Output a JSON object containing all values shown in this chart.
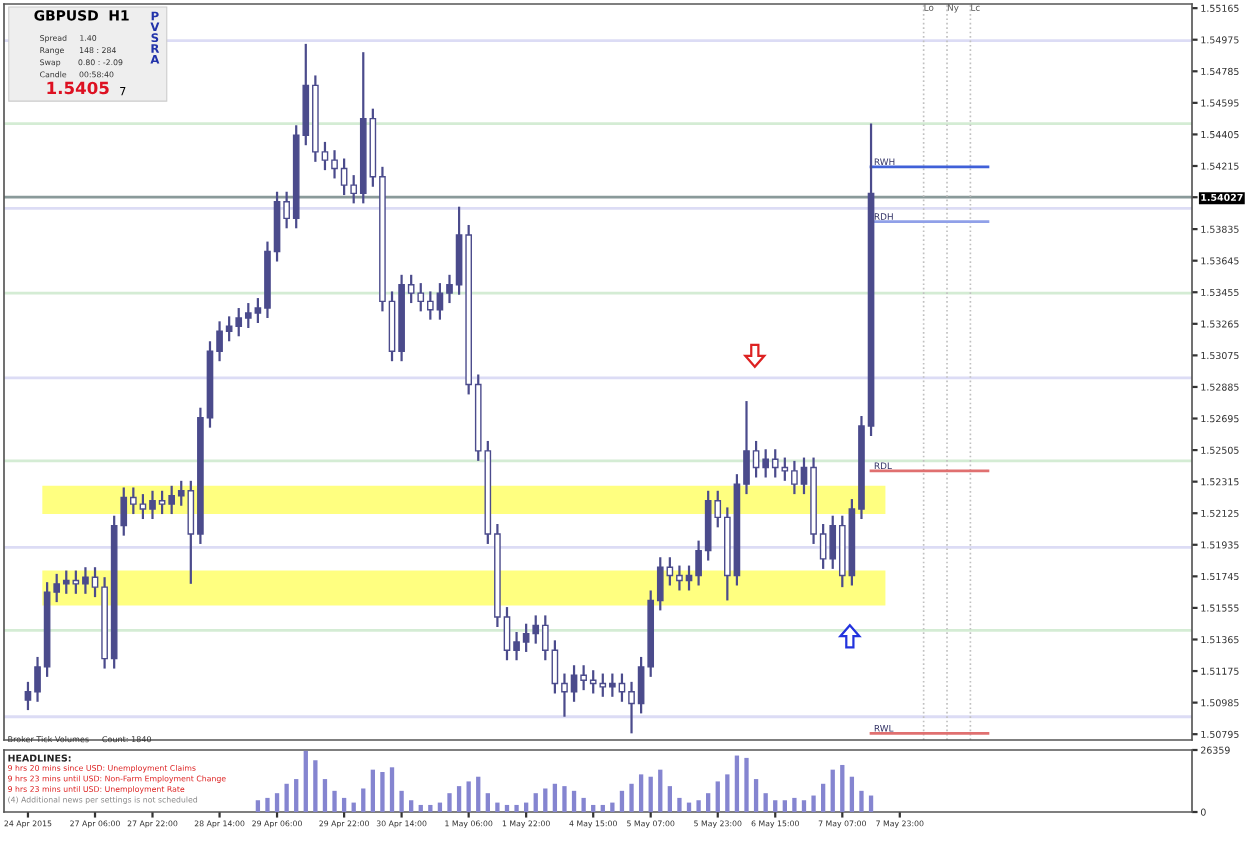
{
  "chart_data": [
    {
      "type": "candlestick",
      "color": "#4b4b8c",
      "tick_labels": "y",
      "legend": false,
      "grid": false,
      "categories": [
        null,
        null,
        null,
        null,
        null,
        null,
        null,
        null,
        null,
        null,
        null,
        null,
        null,
        null,
        null,
        null,
        null,
        null,
        null,
        null,
        null,
        null,
        null,
        null,
        null,
        null,
        null,
        null,
        null,
        null,
        null,
        null,
        null,
        null,
        null,
        null,
        null,
        null,
        null,
        null,
        null,
        null,
        null,
        null,
        null,
        null,
        null,
        null,
        null,
        null,
        null,
        null,
        null,
        null,
        null,
        null,
        null,
        null,
        null,
        null,
        null,
        null,
        null,
        null,
        null,
        null,
        null,
        null,
        null,
        null,
        null,
        null,
        null,
        null,
        null,
        null,
        null,
        null,
        null,
        null,
        null,
        null,
        null,
        null,
        null,
        null,
        null,
        null,
        null,
        null,
        null,
        null,
        null,
        null,
        null,
        null,
        null,
        null,
        null,
        null,
        null,
        null,
        null,
        null,
        null,
        null,
        null,
        null,
        null,
        null,
        null,
        null,
        null,
        null,
        null,
        null,
        null,
        null,
        null,
        null,
        null,
        null
      ],
      "ohlc": [
        [
          1.51,
          1.5111,
          1.5094,
          1.5105
        ],
        [
          1.5105,
          1.5126,
          1.5099,
          1.512
        ],
        [
          1.512,
          1.5171,
          1.5114,
          1.5165
        ],
        [
          1.5165,
          1.5176,
          1.5159,
          1.517
        ],
        [
          1.517,
          1.5178,
          1.5164,
          1.5172
        ],
        [
          1.5172,
          1.5178,
          1.5164,
          1.517
        ],
        [
          1.517,
          1.518,
          1.5164,
          1.5174
        ],
        [
          1.5174,
          1.518,
          1.5162,
          1.5168
        ],
        [
          1.5168,
          1.5174,
          1.5119,
          1.5125
        ],
        [
          1.5125,
          1.5211,
          1.5119,
          1.5205
        ],
        [
          1.5205,
          1.5228,
          1.5199,
          1.5222
        ],
        [
          1.5222,
          1.5228,
          1.5212,
          1.5218
        ],
        [
          1.5218,
          1.5224,
          1.5209,
          1.5215
        ],
        [
          1.5215,
          1.5226,
          1.5209,
          1.522
        ],
        [
          1.522,
          1.5226,
          1.5212,
          1.5218
        ],
        [
          1.5218,
          1.5229,
          1.5212,
          1.5223
        ],
        [
          1.5223,
          1.5232,
          1.5217,
          1.5226
        ],
        [
          1.5226,
          1.5232,
          1.517,
          1.52
        ],
        [
          1.52,
          1.5276,
          1.5194,
          1.527
        ],
        [
          1.527,
          1.5316,
          1.5264,
          1.531
        ],
        [
          1.531,
          1.5328,
          1.5304,
          1.5322
        ],
        [
          1.5322,
          1.5331,
          1.5316,
          1.5325
        ],
        [
          1.5325,
          1.5336,
          1.5319,
          1.533
        ],
        [
          1.533,
          1.5339,
          1.5324,
          1.5333
        ],
        [
          1.5333,
          1.5342,
          1.5327,
          1.5336
        ],
        [
          1.5336,
          1.5376,
          1.533,
          1.537
        ],
        [
          1.537,
          1.5406,
          1.5364,
          1.54
        ],
        [
          1.54,
          1.5406,
          1.5384,
          1.539
        ],
        [
          1.539,
          1.5446,
          1.5384,
          1.544
        ],
        [
          1.544,
          1.5495,
          1.5434,
          1.547
        ],
        [
          1.547,
          1.5476,
          1.5424,
          1.543
        ],
        [
          1.543,
          1.5436,
          1.5419,
          1.5425
        ],
        [
          1.5425,
          1.5431,
          1.5414,
          1.542
        ],
        [
          1.542,
          1.5426,
          1.5404,
          1.541
        ],
        [
          1.541,
          1.5416,
          1.5399,
          1.5405
        ],
        [
          1.5405,
          1.549,
          1.5399,
          1.545
        ],
        [
          1.545,
          1.5456,
          1.5409,
          1.5415
        ],
        [
          1.5415,
          1.5421,
          1.5334,
          1.534
        ],
        [
          1.534,
          1.5346,
          1.5304,
          1.531
        ],
        [
          1.531,
          1.5356,
          1.5304,
          1.535
        ],
        [
          1.535,
          1.5356,
          1.5339,
          1.5345
        ],
        [
          1.5345,
          1.5351,
          1.5334,
          1.534
        ],
        [
          1.534,
          1.5346,
          1.5329,
          1.5335
        ],
        [
          1.5335,
          1.5351,
          1.5329,
          1.5345
        ],
        [
          1.5345,
          1.5356,
          1.5339,
          1.535
        ],
        [
          1.535,
          1.5397,
          1.5344,
          1.538
        ],
        [
          1.538,
          1.5386,
          1.5284,
          1.529
        ],
        [
          1.529,
          1.5296,
          1.5244,
          1.525
        ],
        [
          1.525,
          1.5256,
          1.5194,
          1.52
        ],
        [
          1.52,
          1.5206,
          1.5144,
          1.515
        ],
        [
          1.515,
          1.5156,
          1.5124,
          1.513
        ],
        [
          1.513,
          1.5141,
          1.5124,
          1.5135
        ],
        [
          1.5135,
          1.5146,
          1.5129,
          1.514
        ],
        [
          1.514,
          1.5151,
          1.5134,
          1.5145
        ],
        [
          1.5145,
          1.5151,
          1.5124,
          1.513
        ],
        [
          1.513,
          1.5136,
          1.5104,
          1.511
        ],
        [
          1.511,
          1.5116,
          1.509,
          1.5105
        ],
        [
          1.5105,
          1.5121,
          1.5099,
          1.5115
        ],
        [
          1.5115,
          1.5121,
          1.5106,
          1.5112
        ],
        [
          1.5112,
          1.5118,
          1.5104,
          1.511
        ],
        [
          1.511,
          1.5116,
          1.5102,
          1.5108
        ],
        [
          1.5108,
          1.5116,
          1.5102,
          1.511
        ],
        [
          1.511,
          1.5116,
          1.5099,
          1.5105
        ],
        [
          1.5105,
          1.5111,
          1.508,
          1.5098
        ],
        [
          1.5098,
          1.5126,
          1.5092,
          1.512
        ],
        [
          1.512,
          1.5166,
          1.5114,
          1.516
        ],
        [
          1.516,
          1.5186,
          1.5154,
          1.518
        ],
        [
          1.518,
          1.5186,
          1.5169,
          1.5175
        ],
        [
          1.5175,
          1.5181,
          1.5166,
          1.5172
        ],
        [
          1.5172,
          1.5181,
          1.5166,
          1.5175
        ],
        [
          1.5175,
          1.5196,
          1.5169,
          1.519
        ],
        [
          1.519,
          1.5226,
          1.5184,
          1.522
        ],
        [
          1.522,
          1.5226,
          1.5204,
          1.521
        ],
        [
          1.521,
          1.5216,
          1.516,
          1.5175
        ],
        [
          1.5175,
          1.5236,
          1.5169,
          1.523
        ],
        [
          1.523,
          1.528,
          1.5224,
          1.525
        ],
        [
          1.525,
          1.5256,
          1.5234,
          1.524
        ],
        [
          1.524,
          1.5251,
          1.5234,
          1.5245
        ],
        [
          1.5245,
          1.5251,
          1.5234,
          1.524
        ],
        [
          1.524,
          1.5246,
          1.5232,
          1.5238
        ],
        [
          1.5238,
          1.5244,
          1.5224,
          1.523
        ],
        [
          1.523,
          1.5246,
          1.5224,
          1.524
        ],
        [
          1.524,
          1.5246,
          1.5194,
          1.52
        ],
        [
          1.52,
          1.5206,
          1.5179,
          1.5185
        ],
        [
          1.5185,
          1.5211,
          1.5179,
          1.5205
        ],
        [
          1.5205,
          1.5211,
          1.5168,
          1.5175
        ],
        [
          1.5175,
          1.5221,
          1.5169,
          1.5215
        ],
        [
          1.5215,
          1.5271,
          1.5209,
          1.5265
        ],
        [
          1.5265,
          1.5447,
          1.5259,
          1.5405
        ],
        null,
        null,
        null,
        null,
        null,
        null,
        null,
        null,
        null,
        null,
        null,
        null,
        null,
        null,
        null,
        null,
        null,
        null,
        null,
        null,
        null,
        null,
        null,
        null,
        null,
        null,
        null,
        null,
        null,
        null,
        null,
        null,
        null
      ],
      "ylim": [
        1.5076,
        1.5519
      ],
      "yticks": [
        1.55165,
        1.54975,
        1.54785,
        1.54595,
        1.54405,
        1.54215,
        {
          "value": 1.54027,
          "label": "1.54027"
        },
        1.53835,
        1.53645,
        1.53455,
        1.53265,
        1.53075,
        1.52885,
        1.52695,
        1.52505,
        1.52315,
        1.52125,
        1.51935,
        1.51745,
        1.51555,
        1.51365,
        1.51175,
        1.50985,
        1.50795
      ],
      "bands": [
        {
          "axis": "y",
          "from": 1.5212,
          "to": 1.5229,
          "color": "#ffff80"
        },
        {
          "axis": "y",
          "from": 1.5157,
          "to": 1.5178,
          "color": "#ffff80"
        }
      ],
      "ref_lines": [
        {
          "axis": "y",
          "value": 1.5497,
          "color": "#dcdcf5"
        },
        {
          "axis": "y",
          "value": 1.5447,
          "color": "#d4ecd4"
        },
        {
          "axis": "y",
          "value": 1.5396,
          "color": "#dcdcf5"
        },
        {
          "axis": "y",
          "value": 1.5345,
          "color": "#d4ecd4"
        },
        {
          "axis": "y",
          "value": 1.5294,
          "color": "#dcdcf5"
        },
        {
          "axis": "y",
          "value": 1.5244,
          "color": "#d4ecd4"
        },
        {
          "axis": "y",
          "value": 1.5192,
          "color": "#dcdcf5"
        },
        {
          "axis": "y",
          "value": 1.5142,
          "color": "#d4ecd4"
        },
        {
          "axis": "y",
          "value": 1.509,
          "color": "#dcdcf5"
        },
        {
          "axis": "y",
          "value": 1.54027,
          "color": "#8a9a9a"
        },
        {
          "axis": "y",
          "value": 1.5421,
          "label": "RWH",
          "color": "#4060d8"
        },
        {
          "axis": "y",
          "value": 1.5388,
          "label": "RDH",
          "color": "#90a0e8"
        },
        {
          "axis": "y",
          "value": 1.5238,
          "label": "RDL",
          "color": "#e07070"
        },
        {
          "axis": "y",
          "value": 1.508,
          "label": "RWL",
          "color": "#e07070"
        }
      ],
      "annotations": [
        "Lo",
        "Ny",
        "Lc",
        "GBPUSD  H1",
        "Spread     1.40",
        "Range      148 : 284",
        "Swap       0.80 : -2.09",
        "Candle     00:58:40",
        "1.5405",
        "7",
        "PVSRA"
      ]
    },
    {
      "type": "bar",
      "color": "#8585d0",
      "legend": false,
      "grid": false,
      "categories": [
        "24 Apr 2015",
        null,
        null,
        null,
        null,
        null,
        null,
        "27 Apr 06:00",
        null,
        null,
        null,
        null,
        null,
        "27 Apr 22:00",
        null,
        null,
        null,
        null,
        null,
        null,
        "28 Apr 14:00",
        null,
        null,
        null,
        null,
        null,
        "29 Apr 06:00",
        null,
        null,
        null,
        null,
        null,
        null,
        "29 Apr 22:00",
        null,
        null,
        null,
        null,
        null,
        "30 Apr 14:00",
        null,
        null,
        null,
        null,
        null,
        null,
        "1 May 06:00",
        null,
        null,
        null,
        null,
        null,
        "1 May 22:00",
        null,
        null,
        null,
        null,
        null,
        null,
        "4 May 15:00",
        null,
        null,
        null,
        null,
        null,
        "5 May 07:00",
        null,
        null,
        null,
        null,
        null,
        null,
        "5 May 23:00",
        null,
        null,
        null,
        null,
        null,
        "6 May 15:00",
        null,
        null,
        null,
        null,
        null,
        null,
        "7 May 07:00",
        null,
        null,
        null,
        null,
        null,
        "7 May 23:00",
        null,
        null,
        null,
        null,
        null,
        null,
        null,
        null,
        null,
        null,
        null,
        null,
        null,
        null,
        null,
        null,
        null,
        null,
        null,
        null,
        null,
        null,
        null,
        null,
        null,
        null,
        null,
        null,
        null,
        null
      ],
      "values": [
        null,
        null,
        null,
        null,
        null,
        null,
        null,
        null,
        null,
        null,
        null,
        null,
        null,
        null,
        null,
        null,
        null,
        null,
        null,
        null,
        null,
        null,
        null,
        null,
        5000,
        6000,
        8000,
        12000,
        14000,
        26000,
        22000,
        14000,
        9000,
        6000,
        4000,
        10000,
        18000,
        17000,
        19000,
        9000,
        5000,
        3000,
        3000,
        4000,
        8000,
        11000,
        13000,
        15000,
        8000,
        4000,
        3000,
        3000,
        4000,
        8000,
        10000,
        12000,
        11000,
        9000,
        6000,
        3000,
        3000,
        4000,
        9000,
        12000,
        16000,
        15000,
        18000,
        11000,
        6000,
        4000,
        5000,
        8000,
        13000,
        16000,
        24000,
        23000,
        14000,
        8000,
        5000,
        5000,
        6000,
        5000,
        7000,
        12000,
        18000,
        20000,
        15000,
        9000,
        7000,
        null,
        null,
        null,
        null,
        null,
        null,
        null,
        null,
        null,
        null,
        null,
        null,
        null,
        null,
        null,
        null,
        null,
        null,
        null,
        null,
        null,
        null,
        null,
        null,
        null,
        null,
        null,
        null,
        null,
        null,
        null,
        null,
        null
      ],
      "ylim": [
        0,
        26359
      ],
      "yticks": [
        0,
        26359
      ],
      "annotations": [
        "Broker Tick Volumes     Count: 1840",
        "HEADLINES:",
        "9 hrs 20 mins since USD: Unemployment Claims",
        "9 hrs 23 mins until USD: Non-Farm Employment Change",
        "9 hrs 23 mins until USD: Unemployment Rate",
        "(4) Additional news per settings is not scheduled"
      ]
    }
  ]
}
